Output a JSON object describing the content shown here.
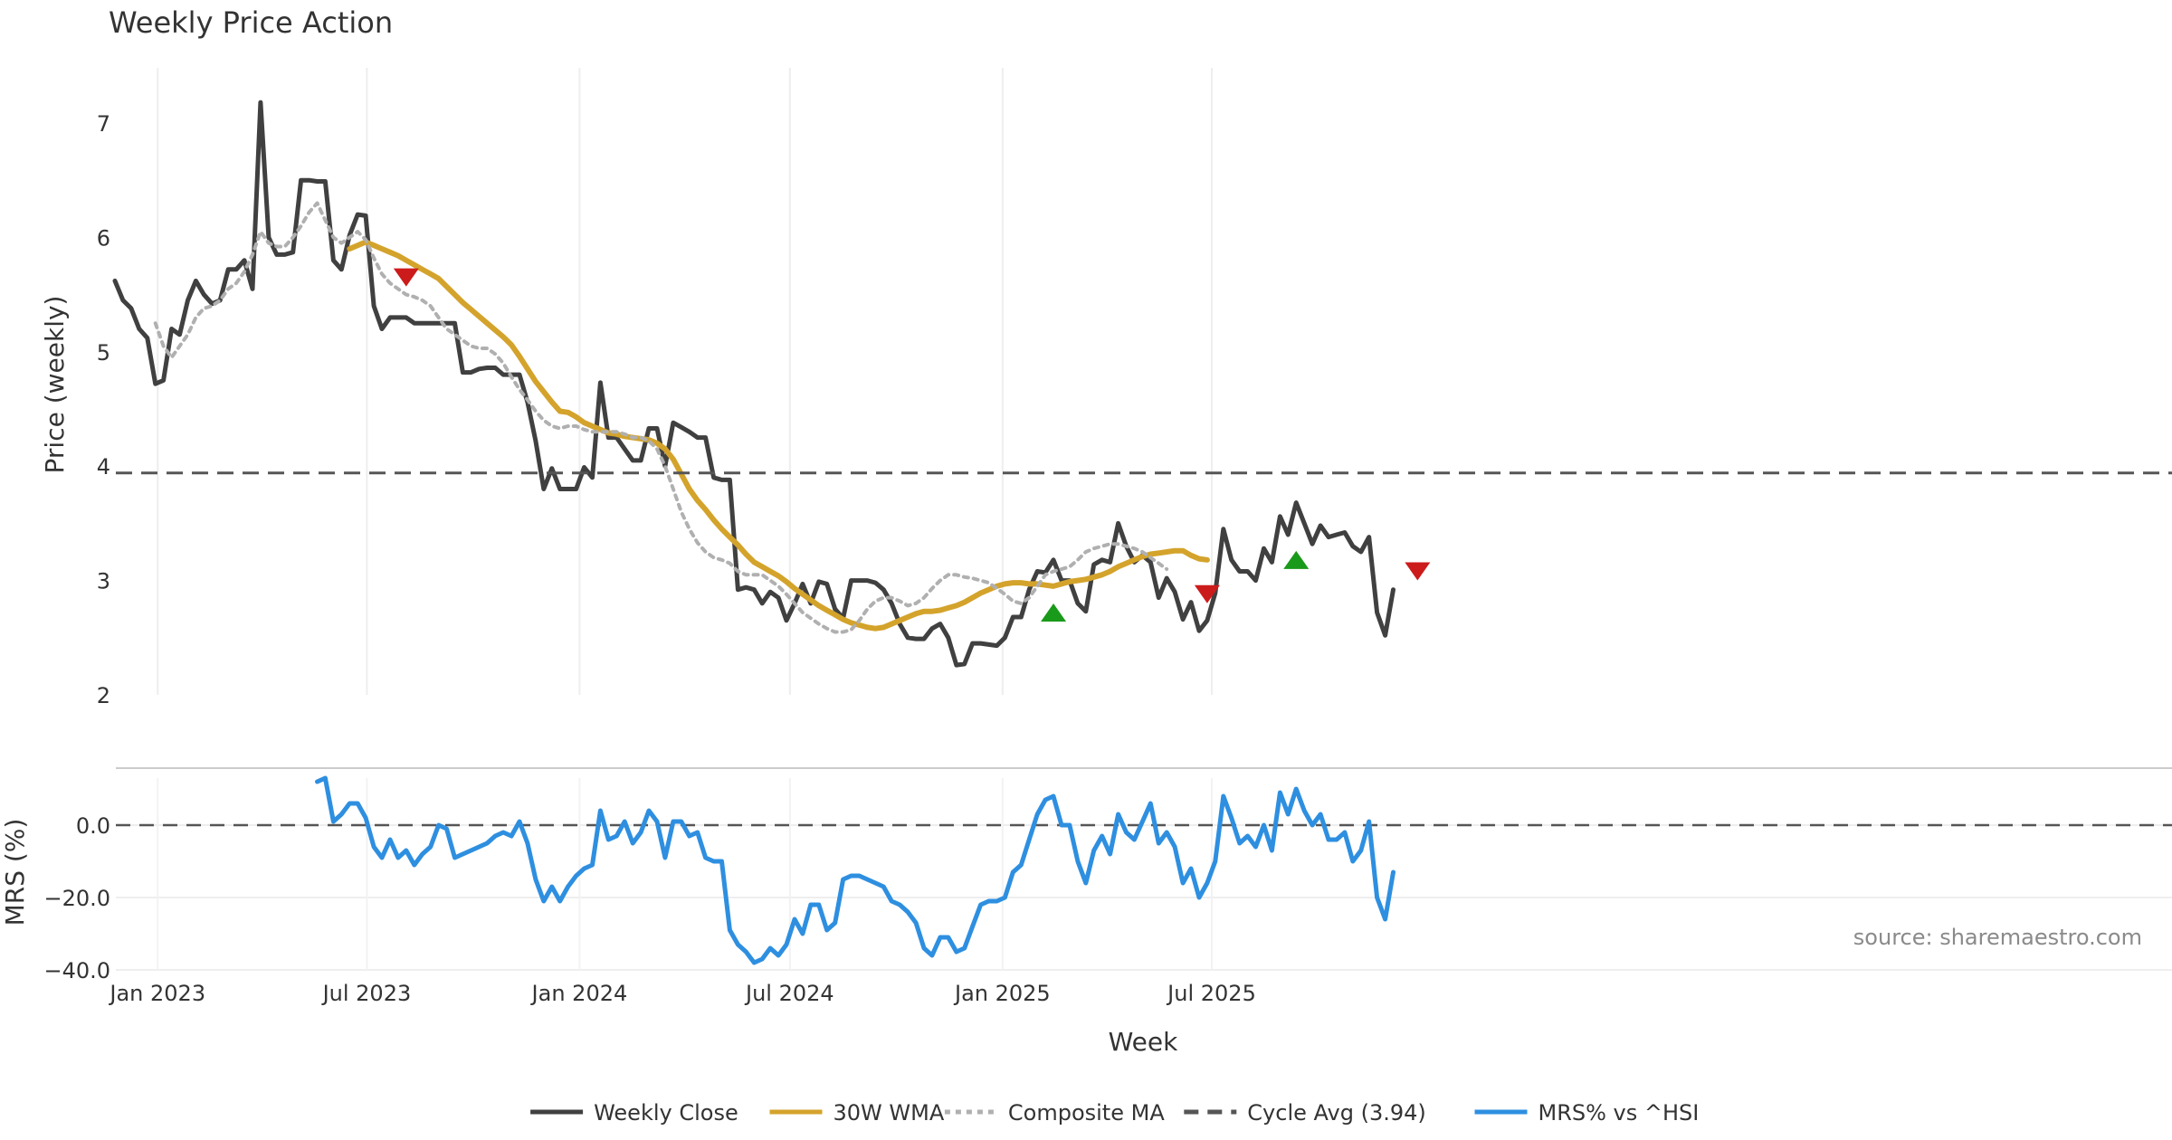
{
  "chart_data": [
    {
      "type": "line",
      "panel": "price",
      "title": "Weekly Price Action",
      "ylabel": "Price (weekly)",
      "ylim": [
        2,
        7.5
      ],
      "yticks": [
        2,
        3,
        4,
        5,
        6,
        7
      ],
      "grid": true,
      "x_start": "2022-11-25",
      "x_step_days": 7,
      "series": [
        {
          "name": "Weekly Close",
          "color": "#404040",
          "style": "solid",
          "values": [
            5.62,
            5.45,
            5.38,
            5.2,
            5.12,
            4.72,
            4.75,
            5.2,
            5.15,
            5.45,
            5.62,
            5.5,
            5.42,
            5.45,
            5.72,
            5.72,
            5.8,
            5.55,
            7.18,
            6.0,
            5.85,
            5.85,
            5.87,
            6.5,
            6.5,
            6.49,
            6.49,
            5.8,
            5.72,
            6.02,
            6.2,
            6.19,
            5.4,
            5.2,
            5.3,
            5.3,
            5.3,
            5.25,
            5.25,
            5.25,
            5.25,
            5.25,
            5.25,
            4.82,
            4.82,
            4.85,
            4.86,
            4.86,
            4.8,
            4.8,
            4.8,
            4.56,
            4.22,
            3.8,
            3.98,
            3.8,
            3.8,
            3.8,
            3.99,
            3.9,
            4.73,
            4.25,
            4.25,
            4.15,
            4.05,
            4.05,
            4.33,
            4.33,
            4.0,
            4.38,
            4.34,
            4.3,
            4.25,
            4.25,
            3.9,
            3.88,
            3.88,
            2.92,
            2.94,
            2.92,
            2.8,
            2.9,
            2.85,
            2.65,
            2.8,
            2.97,
            2.8,
            2.99,
            2.97,
            2.75,
            2.67,
            3.0,
            3.0,
            3.0,
            2.98,
            2.92,
            2.8,
            2.62,
            2.5,
            2.49,
            2.49,
            2.58,
            2.62,
            2.5,
            2.26,
            2.27,
            2.45,
            2.45,
            2.44,
            2.43,
            2.5,
            2.68,
            2.68,
            2.92,
            3.08,
            3.07,
            3.18,
            3.0,
            3.0,
            2.8,
            2.73,
            3.14,
            3.18,
            3.16,
            3.5,
            3.3,
            3.16,
            3.22,
            3.16,
            2.85,
            3.02,
            2.9,
            2.66,
            2.81,
            2.56,
            2.65,
            2.89,
            3.45,
            3.18,
            3.08,
            3.08,
            3.0,
            3.28,
            3.16,
            3.56,
            3.4,
            3.68,
            3.5,
            3.32,
            3.48,
            3.38,
            3.4,
            3.42,
            3.3,
            3.25,
            3.38,
            2.72,
            2.52,
            2.92
          ]
        },
        {
          "name": "30W WMA",
          "color": "#d4a32b",
          "style": "solid",
          "values": [
            null,
            null,
            null,
            null,
            null,
            null,
            null,
            null,
            null,
            null,
            null,
            null,
            null,
            null,
            null,
            null,
            null,
            null,
            null,
            null,
            null,
            null,
            null,
            null,
            null,
            null,
            null,
            null,
            null,
            5.9,
            5.93,
            5.96,
            5.93,
            5.9,
            5.87,
            5.84,
            5.8,
            5.76,
            5.72,
            5.68,
            5.64,
            5.57,
            5.5,
            5.43,
            5.37,
            5.31,
            5.25,
            5.19,
            5.13,
            5.06,
            4.96,
            4.85,
            4.74,
            4.65,
            4.56,
            4.48,
            4.47,
            4.43,
            4.38,
            4.35,
            4.32,
            4.29,
            4.28,
            4.26,
            4.25,
            4.24,
            4.23,
            4.2,
            4.15,
            4.06,
            3.93,
            3.8,
            3.7,
            3.62,
            3.53,
            3.45,
            3.38,
            3.31,
            3.23,
            3.16,
            3.12,
            3.08,
            3.04,
            2.99,
            2.93,
            2.88,
            2.83,
            2.78,
            2.74,
            2.7,
            2.66,
            2.63,
            2.61,
            2.59,
            2.58,
            2.59,
            2.62,
            2.65,
            2.68,
            2.71,
            2.73,
            2.73,
            2.74,
            2.76,
            2.78,
            2.81,
            2.85,
            2.89,
            2.92,
            2.95,
            2.97,
            2.98,
            2.98,
            2.97,
            2.97,
            2.96,
            2.95,
            2.97,
            2.99,
            3.0,
            3.01,
            3.03,
            3.05,
            3.08,
            3.12,
            3.15,
            3.18,
            3.21,
            3.23,
            3.24,
            3.25,
            3.26,
            3.26,
            3.22,
            3.19,
            3.18
          ]
        },
        {
          "name": "Composite MA",
          "color": "#b0b0b0",
          "style": "dotted",
          "values": [
            null,
            null,
            null,
            null,
            null,
            5.25,
            5.05,
            4.95,
            5.05,
            5.15,
            5.3,
            5.38,
            5.4,
            5.45,
            5.55,
            5.6,
            5.7,
            5.85,
            6.05,
            5.95,
            5.92,
            5.92,
            6.0,
            6.1,
            6.22,
            6.3,
            6.15,
            6.0,
            5.95,
            6.0,
            6.05,
            5.98,
            5.82,
            5.68,
            5.6,
            5.55,
            5.5,
            5.48,
            5.45,
            5.4,
            5.3,
            5.2,
            5.15,
            5.1,
            5.05,
            5.03,
            5.03,
            4.98,
            4.9,
            4.78,
            4.67,
            4.58,
            4.48,
            4.4,
            4.35,
            4.33,
            4.35,
            4.35,
            4.32,
            4.3,
            4.3,
            4.3,
            4.3,
            4.28,
            4.25,
            4.25,
            4.22,
            4.15,
            4.0,
            3.8,
            3.6,
            3.45,
            3.33,
            3.25,
            3.2,
            3.18,
            3.15,
            3.08,
            3.05,
            3.05,
            3.05,
            3.0,
            2.95,
            2.88,
            2.8,
            2.72,
            2.67,
            2.62,
            2.58,
            2.55,
            2.55,
            2.57,
            2.65,
            2.75,
            2.82,
            2.85,
            2.85,
            2.82,
            2.78,
            2.8,
            2.85,
            2.93,
            3.0,
            3.05,
            3.05,
            3.03,
            3.02,
            3.0,
            2.98,
            2.93,
            2.88,
            2.82,
            2.8,
            2.85,
            2.95,
            3.05,
            3.08,
            3.1,
            3.12,
            3.18,
            3.25,
            3.28,
            3.3,
            3.32,
            3.32,
            3.3,
            3.28,
            3.25,
            3.2,
            3.15,
            3.1
          ]
        },
        {
          "name": "Cycle Avg (3.94)",
          "color": "#555555",
          "style": "dashed",
          "value": 3.94
        }
      ],
      "markers": [
        {
          "type": "sell",
          "week": 36,
          "value": 5.65,
          "color": "#cc1b1b"
        },
        {
          "type": "buy",
          "week": 116,
          "value": 2.72,
          "color": "#1a9a1a"
        },
        {
          "type": "sell",
          "week": 135,
          "value": 2.88,
          "color": "#cc1b1b"
        },
        {
          "type": "buy",
          "week": 146,
          "value": 3.18,
          "color": "#1a9a1a"
        },
        {
          "type": "sell",
          "week": 161,
          "value": 3.08,
          "color": "#cc1b1b"
        }
      ]
    },
    {
      "type": "line",
      "panel": "mrs",
      "ylabel": "MRS (%)",
      "xlabel": "Week",
      "ylim": [
        -40,
        15
      ],
      "yticks": [
        0.0,
        -20.0,
        -40.0
      ],
      "ytick_labels": [
        "0.0",
        "−20.0",
        "−40.0"
      ],
      "xticks": [
        "Jan 2023",
        "Jul 2023",
        "Jan 2024",
        "Jul 2024",
        "Jan 2025",
        "Jul 2025"
      ],
      "xtick_dates": [
        "2023-01-01",
        "2023-07-01",
        "2024-01-01",
        "2024-07-01",
        "2025-01-01",
        "2025-07-01"
      ],
      "zero_line": {
        "value": 0,
        "style": "dashed",
        "color": "#555555"
      },
      "series": [
        {
          "name": "MRS% vs ^HSI",
          "color": "#2e8fe0",
          "style": "solid",
          "start_week": 25,
          "values": [
            12,
            13,
            1,
            3,
            6,
            6,
            2,
            -6,
            -9,
            -4,
            -9,
            -7,
            -11,
            -8,
            -6,
            0,
            -1,
            -9,
            -8,
            -7,
            -6,
            -5,
            -3,
            -2,
            -3,
            1,
            -5,
            -15,
            -21,
            -17,
            -21,
            -17,
            -14,
            -12,
            -11,
            4,
            -4,
            -3,
            1,
            -5,
            -2,
            4,
            1,
            -9,
            1,
            1,
            -3,
            -2,
            -9,
            -10,
            -10,
            -29,
            -33,
            -35,
            -38,
            -37,
            -34,
            -36,
            -33,
            -26,
            -30,
            -22,
            -22,
            -29,
            -27,
            -15,
            -14,
            -14,
            -15,
            -16,
            -17,
            -21,
            -22,
            -24,
            -27,
            -34,
            -36,
            -31,
            -31,
            -35,
            -34,
            -28,
            -22,
            -21,
            -21,
            -20,
            -13,
            -11,
            -4,
            3,
            7,
            8,
            0,
            0,
            -10,
            -16,
            -7,
            -3,
            -8,
            3,
            -2,
            -4,
            1,
            6,
            -5,
            -2,
            -6,
            -16,
            -12,
            -20,
            -16,
            -10,
            8,
            2,
            -5,
            -3,
            -6,
            0,
            -7,
            9,
            3,
            10,
            4,
            0,
            3,
            -4,
            -4,
            -2,
            -10,
            -7,
            1,
            -20,
            -26,
            -13
          ]
        }
      ]
    }
  ],
  "legend": {
    "position": "bottom-center",
    "items": [
      {
        "label": "Weekly Close",
        "color": "#404040",
        "style": "solid"
      },
      {
        "label": "30W WMA",
        "color": "#d4a32b",
        "style": "solid"
      },
      {
        "label": "Composite MA",
        "color": "#b0b0b0",
        "style": "dotted"
      },
      {
        "label": "Cycle Avg (3.94)",
        "color": "#555555",
        "style": "dashed"
      },
      {
        "label": "MRS% vs ^HSI",
        "color": "#2e8fe0",
        "style": "solid"
      }
    ]
  },
  "annotations": {
    "source": "source: sharemaestro.com"
  }
}
